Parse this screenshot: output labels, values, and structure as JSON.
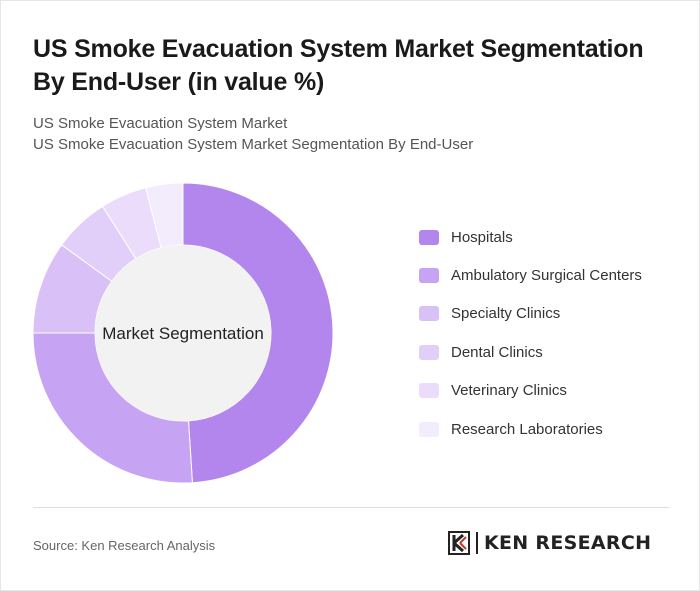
{
  "header": {
    "title": "US Smoke Evacuation System Market Segmentation By End-User (in value %)",
    "subtitle1": "US Smoke Evacuation System Market",
    "subtitle2": "US Smoke Evacuation System Market Segmentation By End-User"
  },
  "chart_data": {
    "type": "pie",
    "variant": "donut",
    "center_label": "Market Segmentation",
    "categories": [
      "Hospitals",
      "Ambulatory Surgical Centers",
      "Specialty Clinics",
      "Dental Clinics",
      "Veterinary Clinics",
      "Research Laboratories"
    ],
    "values": [
      49,
      26,
      10,
      6,
      5,
      4
    ],
    "colors": [
      "#b286ec",
      "#c7a3f3",
      "#d9c0f7",
      "#e2cff9",
      "#eadcfa",
      "#f3ecfc"
    ],
    "legend_position": "right"
  },
  "footer": {
    "source": "Source: Ken Research Analysis",
    "logo_text": "KEN RESEARCH",
    "logo_mark": "K"
  }
}
